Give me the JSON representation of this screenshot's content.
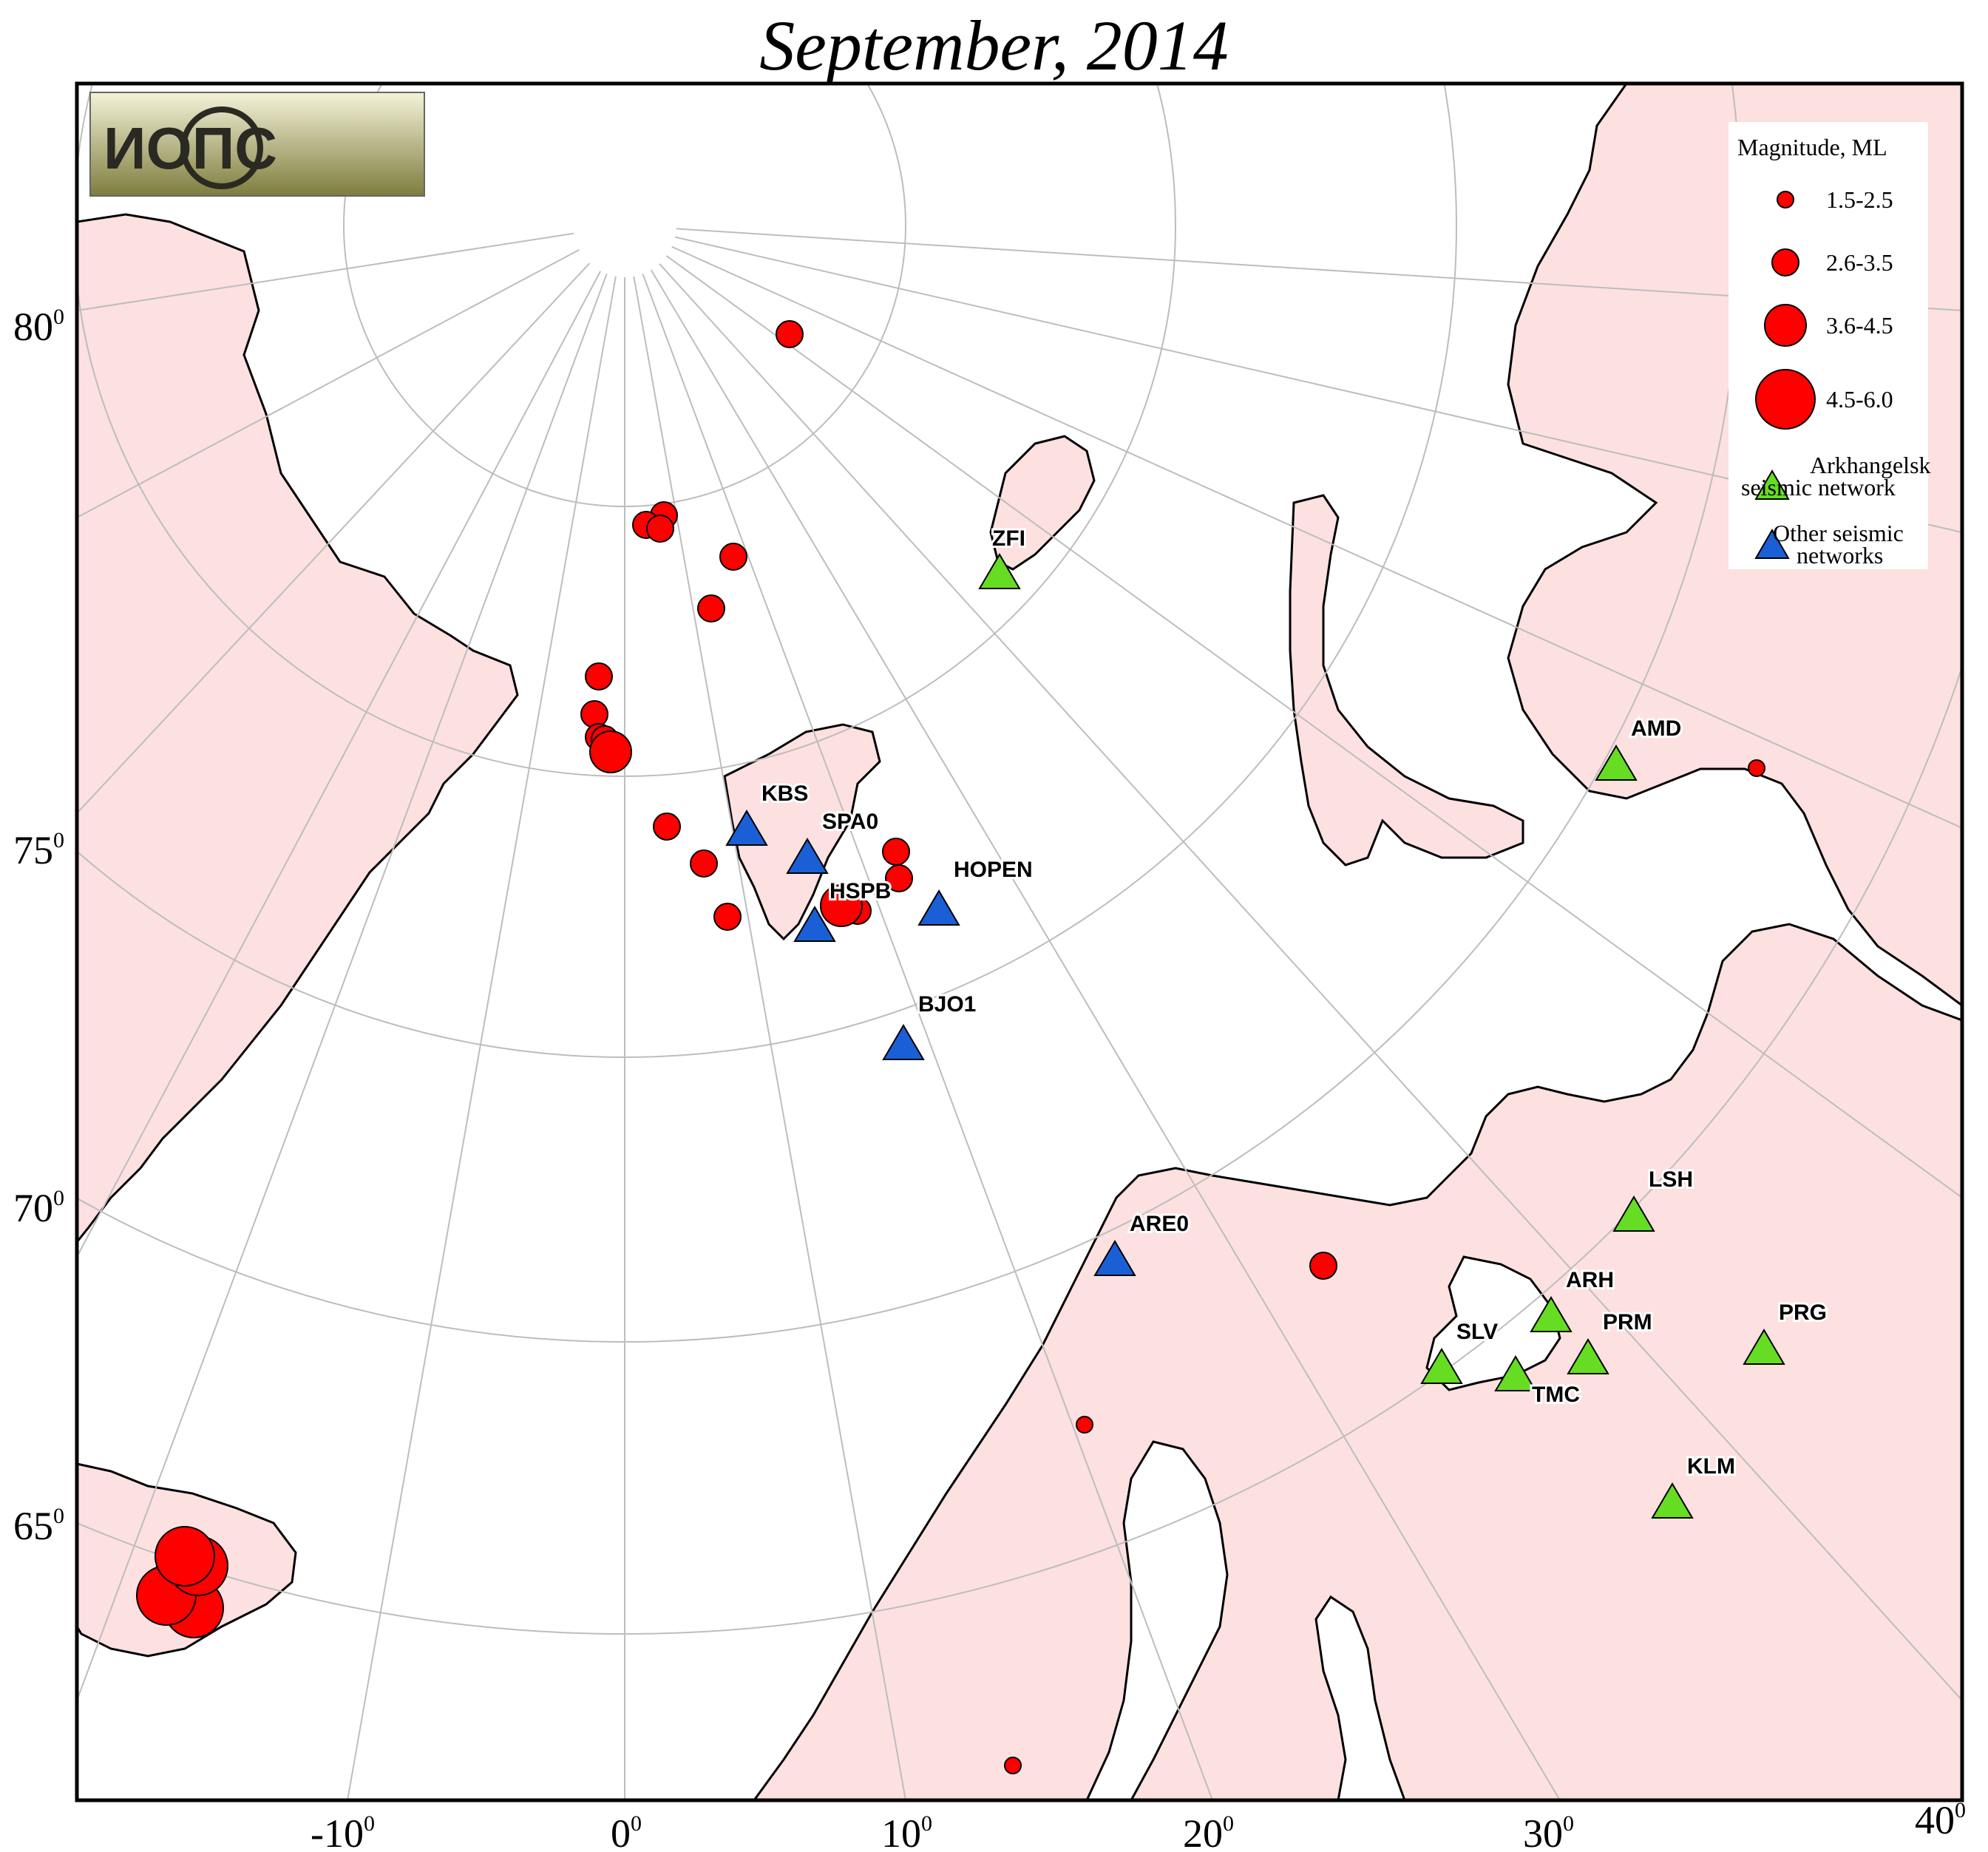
{
  "title": "September, 2014",
  "logo": {
    "text": "ИОПС"
  },
  "latitude_labels": [
    "80",
    "75",
    "70",
    "65"
  ],
  "longitude_labels": [
    "-10",
    "0",
    "10",
    "20",
    "30",
    "40"
  ],
  "degree_mark": "0",
  "legend": {
    "title": "Magnitude, ML",
    "magnitude_classes": [
      "1.5-2.5",
      "2.6-3.5",
      "3.6-4.5",
      "4.5-6.0"
    ],
    "network_green_line1": "Arkhangelsk",
    "network_green_line2": "seismic network",
    "network_blue_line1": "Other seismic",
    "network_blue_line2": "networks"
  },
  "colors": {
    "land": "#fde0e0",
    "event": "#ff0000",
    "arkhangelsk_network": "#66dd22",
    "other_network": "#1a5fd6",
    "graticule": "#bdbdbd"
  },
  "stations": [
    {
      "code": "ZFI",
      "network": "arkhangelsk"
    },
    {
      "code": "KBS",
      "network": "other"
    },
    {
      "code": "SPA0",
      "network": "other"
    },
    {
      "code": "HSPB",
      "network": "other"
    },
    {
      "code": "HOPEN",
      "network": "other"
    },
    {
      "code": "BJO1",
      "network": "other"
    },
    {
      "code": "AMD",
      "network": "arkhangelsk"
    },
    {
      "code": "ARE0",
      "network": "other"
    },
    {
      "code": "LSH",
      "network": "arkhangelsk"
    },
    {
      "code": "ARH",
      "network": "arkhangelsk"
    },
    {
      "code": "PRM",
      "network": "arkhangelsk"
    },
    {
      "code": "SLV",
      "network": "arkhangelsk"
    },
    {
      "code": "TMC",
      "network": "arkhangelsk"
    },
    {
      "code": "PRG",
      "network": "arkhangelsk"
    },
    {
      "code": "KLM",
      "network": "arkhangelsk"
    }
  ]
}
